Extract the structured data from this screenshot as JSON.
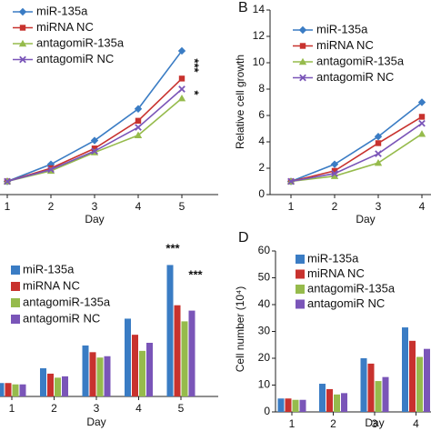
{
  "chart_data": [
    {
      "type": "line",
      "x_label": "Day",
      "categories": [
        "1",
        "2",
        "3",
        "4",
        "5"
      ],
      "ylim": [
        0,
        14
      ],
      "annotations": [
        "***",
        "*"
      ],
      "series": [
        {
          "name": "miR-135a",
          "color": "#3a7cc4",
          "values": [
            1,
            2.3,
            4.1,
            6.5,
            10.9
          ]
        },
        {
          "name": "miRNA NC",
          "color": "#c8322e",
          "values": [
            1,
            2.0,
            3.5,
            5.6,
            8.8
          ]
        },
        {
          "name": "antagomiR-135a",
          "color": "#96bb4c",
          "values": [
            1,
            1.8,
            3.2,
            4.5,
            7.3
          ]
        },
        {
          "name": "antagomiR NC",
          "color": "#7a55b8",
          "values": [
            1,
            1.9,
            3.3,
            5.1,
            8.0
          ]
        }
      ]
    },
    {
      "type": "line",
      "panel_label": "B",
      "x_label": "Day",
      "y_label": "Relative cell growth",
      "categories": [
        "1",
        "2",
        "3",
        "4"
      ],
      "ylim": [
        0,
        14
      ],
      "yticks": [
        0,
        2,
        4,
        6,
        8,
        10,
        12,
        14
      ],
      "series": [
        {
          "name": "miR-135a",
          "color": "#3a7cc4",
          "values": [
            1,
            2.3,
            4.4,
            7.0
          ]
        },
        {
          "name": "miRNA NC",
          "color": "#c8322e",
          "values": [
            1,
            1.8,
            3.9,
            5.9
          ]
        },
        {
          "name": "antagomiR-135a",
          "color": "#96bb4c",
          "values": [
            1,
            1.4,
            2.4,
            4.6
          ]
        },
        {
          "name": "antagomiR NC",
          "color": "#7a55b8",
          "values": [
            1,
            1.6,
            3.1,
            5.4
          ]
        }
      ]
    },
    {
      "type": "bar",
      "x_label": "Day",
      "categories": [
        "1",
        "2",
        "3",
        "4",
        "5"
      ],
      "ylim": [
        0,
        60
      ],
      "annotations": [
        "***",
        "***"
      ],
      "series": [
        {
          "name": "miR-135a",
          "color": "#3a7cc4",
          "values": [
            5,
            10.5,
            19,
            29,
            49
          ]
        },
        {
          "name": "miRNA NC",
          "color": "#c8322e",
          "values": [
            5,
            8.5,
            16.5,
            23,
            34
          ]
        },
        {
          "name": "antagomiR-135a",
          "color": "#96bb4c",
          "values": [
            4.5,
            7,
            14.5,
            17,
            28
          ]
        },
        {
          "name": "antagomiR NC",
          "color": "#7a55b8",
          "values": [
            4.5,
            7.5,
            15,
            20,
            32
          ]
        }
      ]
    },
    {
      "type": "bar",
      "panel_label": "D",
      "x_label": "Day",
      "y_label": "Cell number (10⁴)",
      "categories": [
        "1",
        "2",
        "3",
        "4"
      ],
      "ylim": [
        0,
        60
      ],
      "yticks": [
        0,
        10,
        20,
        30,
        40,
        50,
        60
      ],
      "series": [
        {
          "name": "miR-135a",
          "color": "#3a7cc4",
          "values": [
            5,
            10.5,
            20,
            31.5
          ]
        },
        {
          "name": "miRNA NC",
          "color": "#c8322e",
          "values": [
            5,
            8.5,
            18,
            26.5
          ]
        },
        {
          "name": "antagomiR-135a",
          "color": "#96bb4c",
          "values": [
            4.5,
            6.5,
            11.5,
            20.5
          ]
        },
        {
          "name": "antagomiR NC",
          "color": "#7a55b8",
          "values": [
            4.5,
            7,
            13,
            23.5
          ]
        }
      ]
    }
  ]
}
